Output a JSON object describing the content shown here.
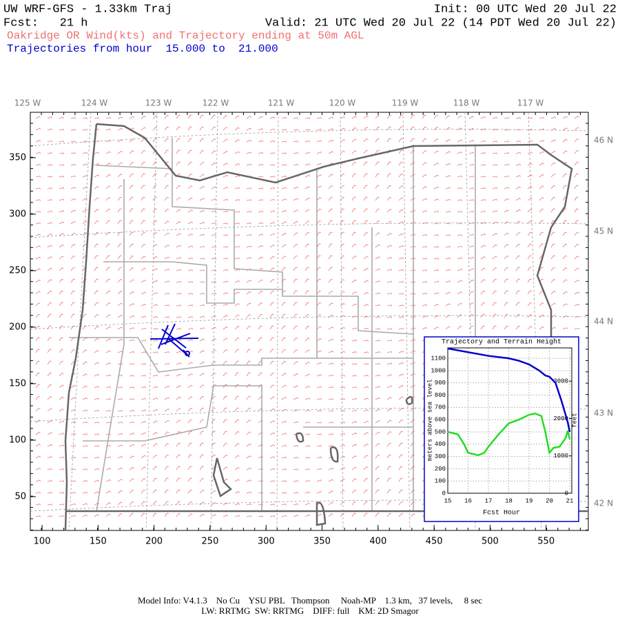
{
  "header": {
    "title": "UW WRF-GFS - 1.33km Traj",
    "init": "Init: 00 UTC Wed 20 Jul 22",
    "fcst": "Fcst:   21 h",
    "valid": "Valid: 21 UTC Wed 20 Jul 22 (14 PDT Wed 20 Jul 22)",
    "subtitle": "Oakridge OR Wind(kts) and Trajectory ending at 50m AGL",
    "trajectory_note": "Trajectories from hour  15.000 to  21.000"
  },
  "map": {
    "xlim": [
      89.5,
      587.7
    ],
    "ylim": [
      20.1,
      390.2
    ],
    "xticks": [
      100,
      150,
      200,
      250,
      300,
      350,
      400,
      450,
      500,
      550
    ],
    "yticks": [
      50,
      100,
      150,
      200,
      250,
      300,
      350
    ],
    "lon_labels": [
      "125 W",
      "124 W",
      "123 W",
      "122 W",
      "121 W",
      "120 W",
      "119 W",
      "118 W",
      "117 W"
    ],
    "lat_labels": [
      "46 N",
      "45 N",
      "44 N",
      "43 N",
      "42 N"
    ]
  },
  "chart_data": {
    "type": "line",
    "title": "Trajectory and Terrain Height",
    "xlabel": "Fcst Hour",
    "ylabel": "meters above sea level",
    "y2label": "feet",
    "xlim": [
      15,
      21.1
    ],
    "ylim": [
      0,
      1185
    ],
    "y2lim": [
      0,
      3888
    ],
    "xticks": [
      15,
      16,
      17,
      18,
      19,
      20,
      21
    ],
    "yticks": [
      0,
      100,
      200,
      300,
      400,
      500,
      600,
      700,
      800,
      900,
      1000,
      1100
    ],
    "y2ticks": [
      0,
      1000,
      2000,
      3000
    ],
    "grid": true,
    "series": [
      {
        "name": "Trajectory",
        "color": "#0000cc",
        "x": [
          15,
          16,
          17,
          18,
          18.5,
          19,
          19.5,
          19.8,
          20,
          20.3,
          20.6,
          20.9,
          21
        ],
        "values": [
          1180,
          1150,
          1120,
          1100,
          1080,
          1050,
          1000,
          960,
          950,
          900,
          750,
          580,
          500
        ]
      },
      {
        "name": "Terrain",
        "color": "#22dd22",
        "x": [
          15,
          15.5,
          15.8,
          16,
          16.5,
          16.8,
          17,
          17.5,
          18,
          18.5,
          19,
          19.3,
          19.6,
          19.8,
          20,
          20.2,
          20.5,
          20.8,
          20.9,
          21
        ],
        "values": [
          500,
          480,
          400,
          330,
          310,
          330,
          380,
          480,
          570,
          600,
          640,
          650,
          630,
          500,
          330,
          370,
          380,
          450,
          510,
          440
        ]
      }
    ]
  },
  "footer": {
    "line1": "Model Info: V4.1.3    No Cu    YSU PBL   Thompson     Noah-MP    1.3 km,   37 levels,     8 sec",
    "line2": "LW: RRTMG  SW: RRTMG    DIFF: full    KM: 2D Smagor"
  }
}
